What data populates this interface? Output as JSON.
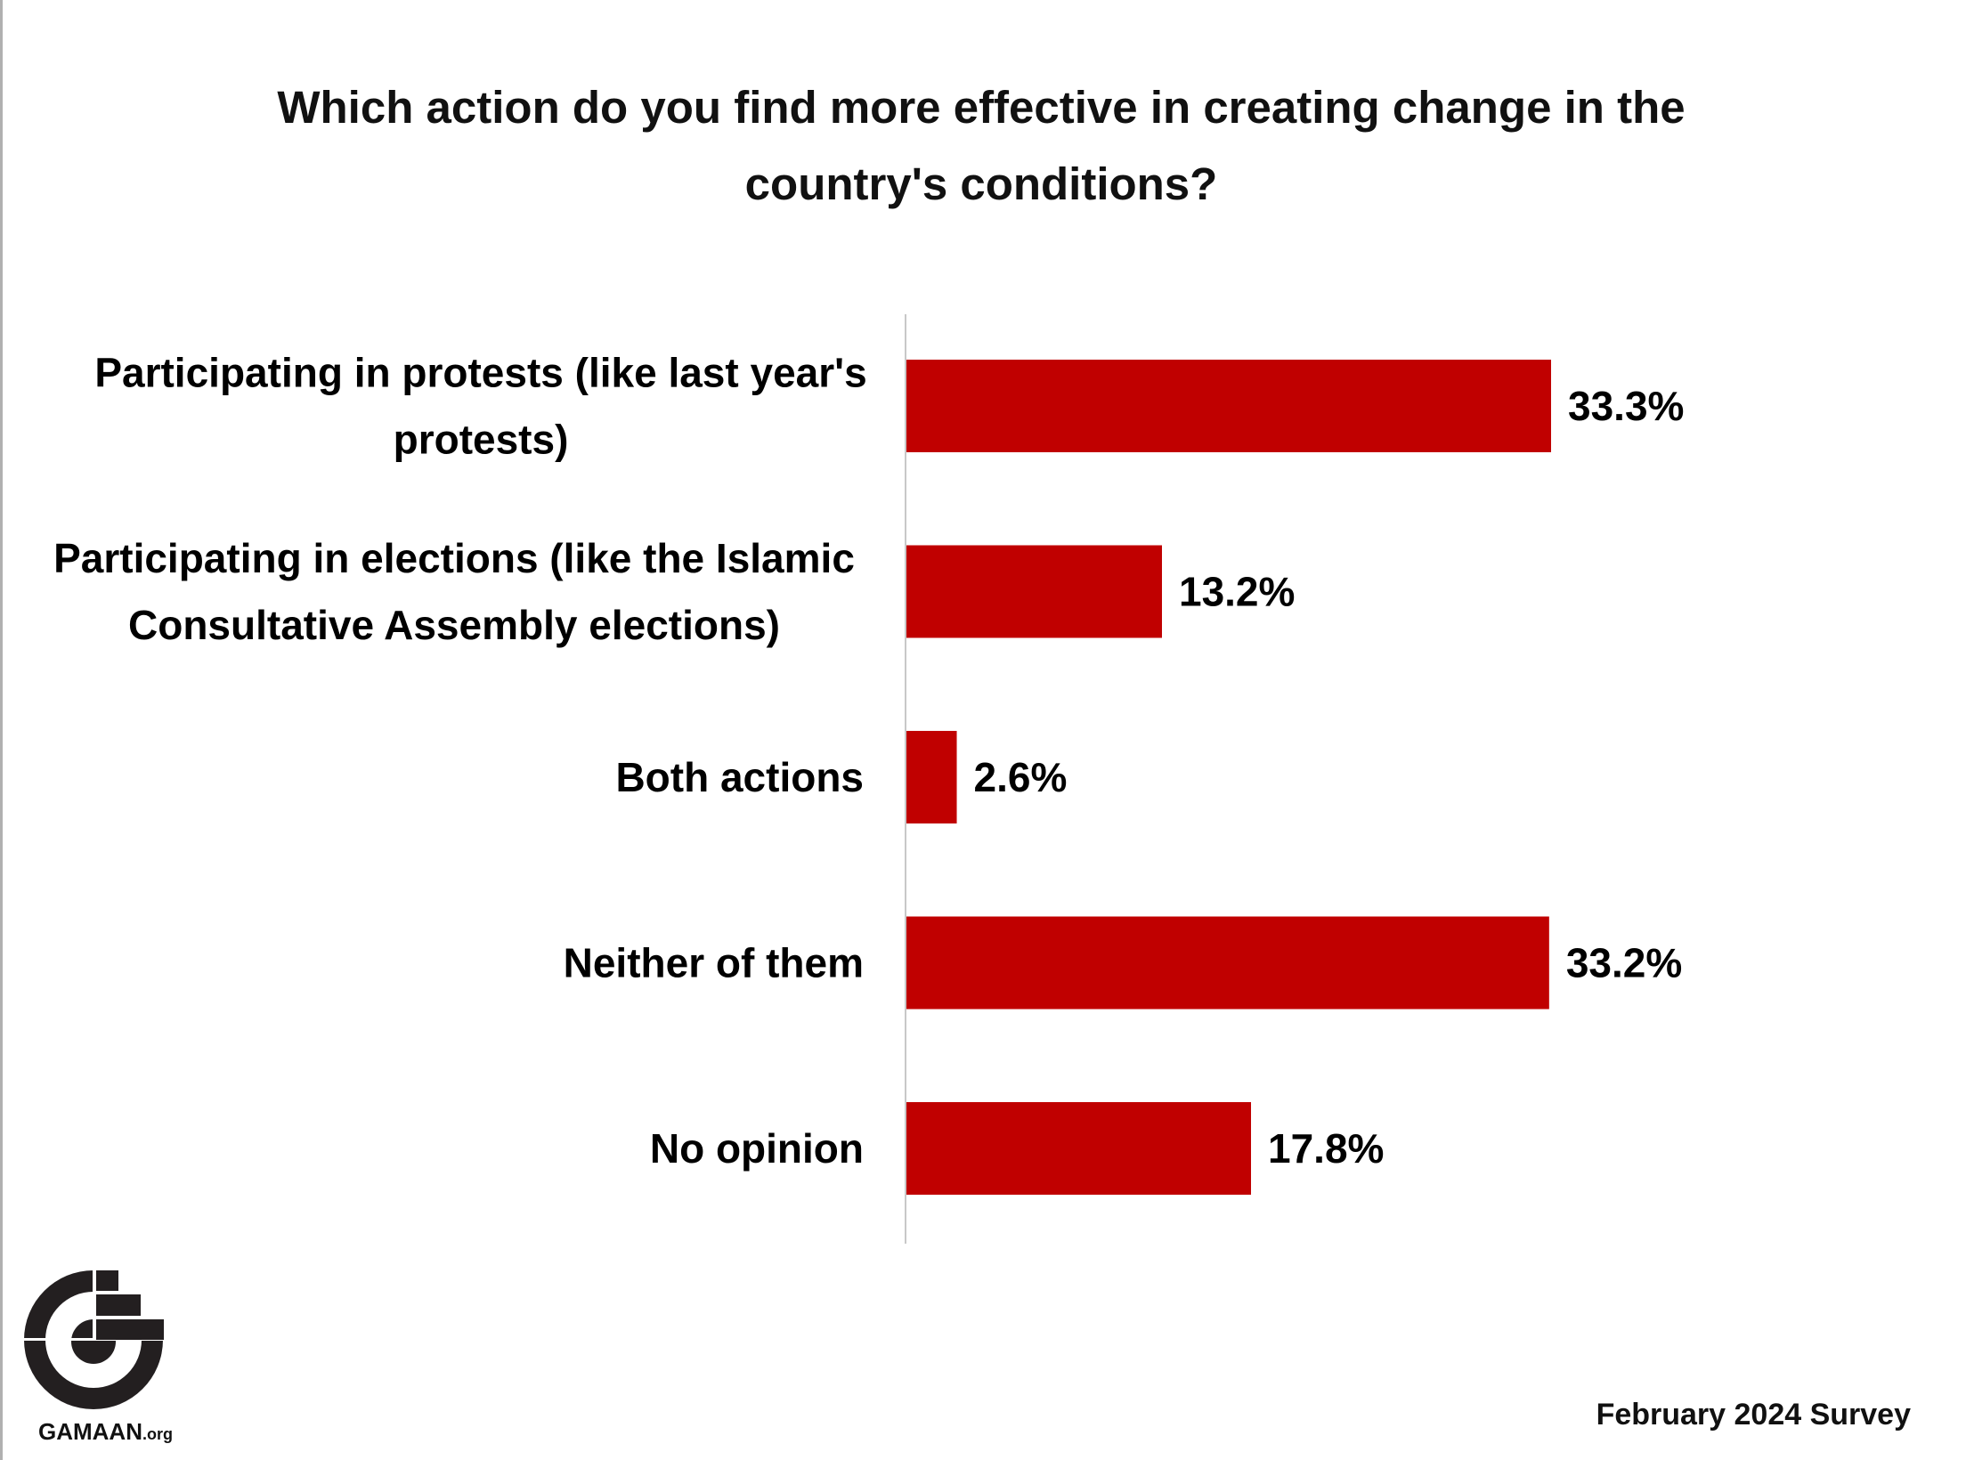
{
  "chart_data": {
    "type": "bar",
    "orientation": "horizontal",
    "title": "Which action do you find more effective in creating change in the country's conditions?",
    "categories": [
      [
        "Participating in protests (like last year's",
        "protests)"
      ],
      [
        "Participating in elections (like the Islamic",
        "Consultative Assembly elections)"
      ],
      [
        "Both actions"
      ],
      [
        "Neither of them"
      ],
      [
        "No opinion"
      ]
    ],
    "values": [
      33.3,
      13.2,
      2.6,
      33.2,
      17.8
    ],
    "value_labels": [
      "33.3%",
      "13.2%",
      "2.6%",
      "33.2%",
      "17.8%"
    ],
    "xlabel": "",
    "ylabel": "",
    "xlim": [
      0,
      50
    ],
    "grid": false,
    "bar_color": "#c00000"
  },
  "footer": {
    "survey": "February 2024 Survey"
  },
  "logo": {
    "text": "GAMAAN",
    "suffix": ".org"
  }
}
